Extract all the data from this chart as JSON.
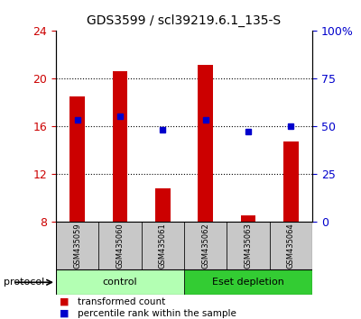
{
  "title": "GDS3599 / scl39219.6.1_135-S",
  "samples": [
    "GSM435059",
    "GSM435060",
    "GSM435061",
    "GSM435062",
    "GSM435063",
    "GSM435064"
  ],
  "red_bar_tops": [
    18.5,
    20.6,
    10.8,
    21.1,
    8.5,
    14.7
  ],
  "red_bar_bottom": 8.0,
  "blue_values": [
    16.5,
    16.8,
    15.7,
    16.5,
    15.5,
    16.0
  ],
  "ylim_left": [
    8,
    24
  ],
  "ylim_right": [
    0,
    100
  ],
  "yticks_left": [
    8,
    12,
    16,
    20,
    24
  ],
  "yticks_right": [
    0,
    25,
    50,
    75,
    100
  ],
  "ytick_labels_right": [
    "0",
    "25",
    "50",
    "75",
    "100%"
  ],
  "left_color": "#cc0000",
  "right_color": "#0000cc",
  "bar_color": "#cc0000",
  "blue_marker_color": "#0000cc",
  "dotted_line_values": [
    12,
    16,
    20
  ],
  "protocol_labels": [
    "control",
    "Eset depletion"
  ],
  "protocol_colors": [
    "#b3ffb3",
    "#33cc33"
  ],
  "group_bg_color": "#c8c8c8",
  "legend_items": [
    "transformed count",
    "percentile rank within the sample"
  ],
  "legend_colors": [
    "#cc0000",
    "#0000cc"
  ],
  "bar_width": 0.35,
  "figure_bg": "#ffffff"
}
